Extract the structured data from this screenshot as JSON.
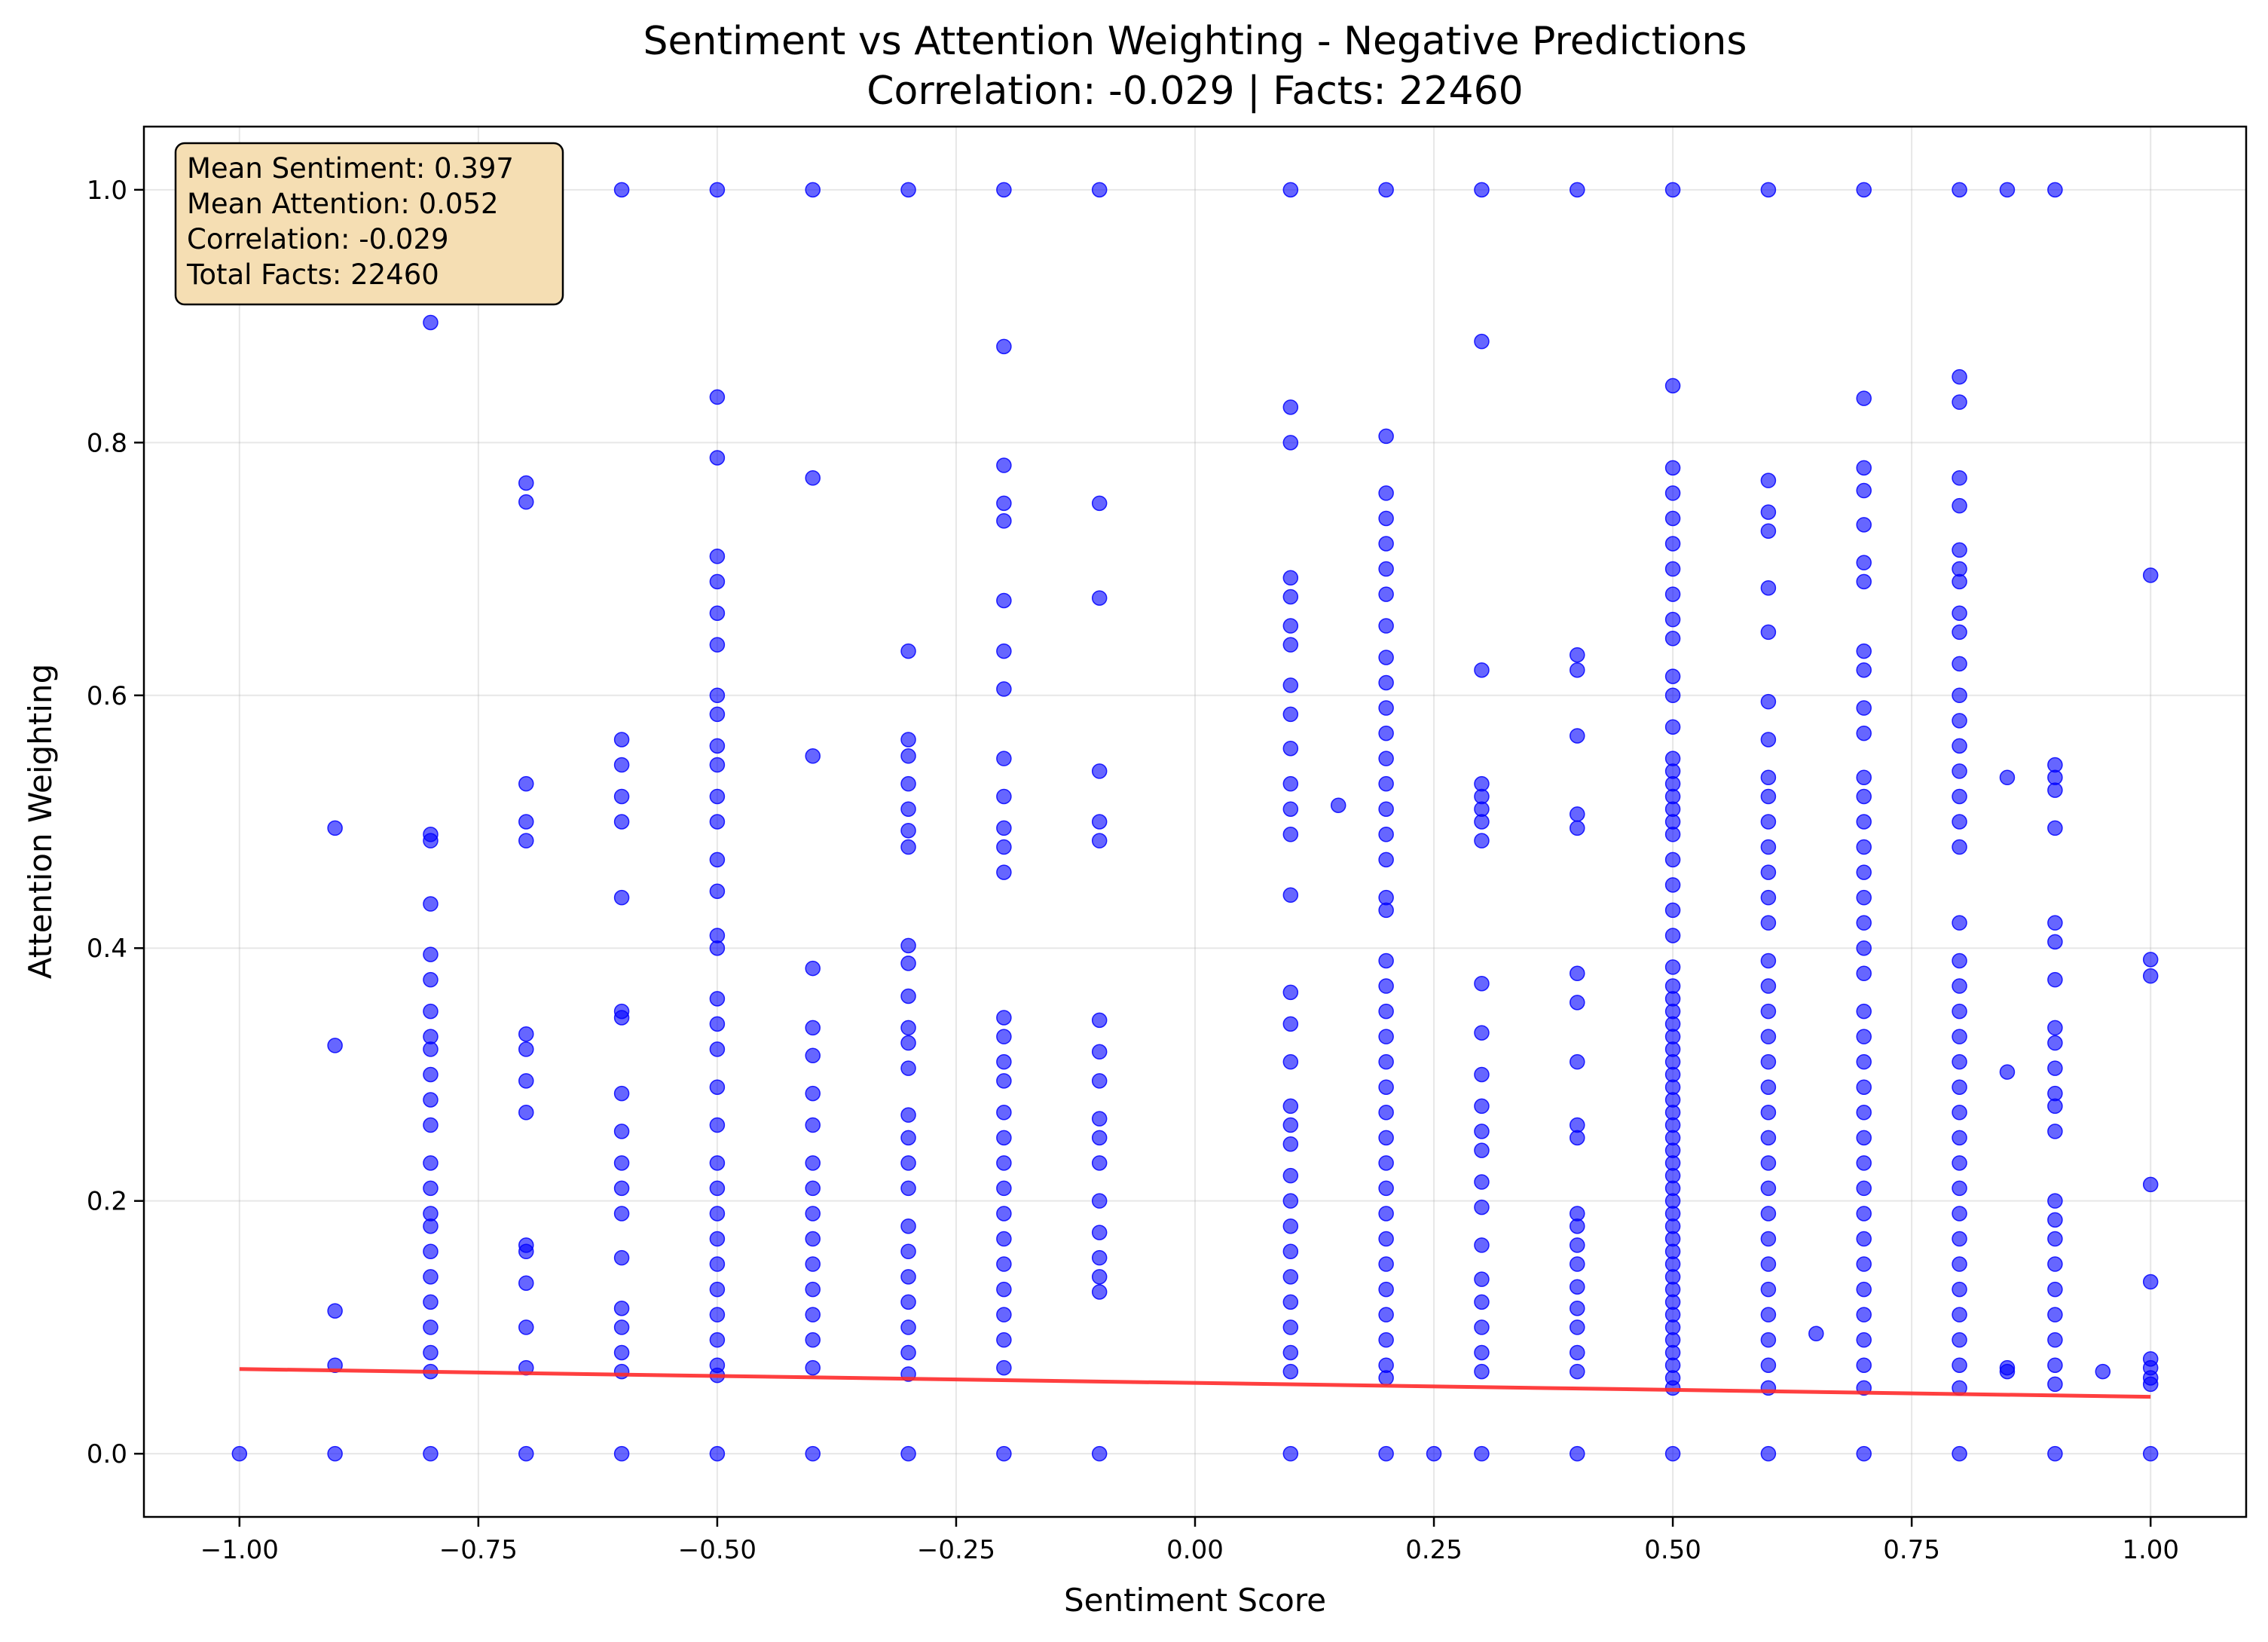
{
  "chart_data": {
    "type": "scatter",
    "title": "Sentiment vs Attention Weighting - Negative Predictions",
    "subtitle": "Correlation: -0.029 | Facts: 22460",
    "xlabel": "Sentiment Score",
    "ylabel": "Attention Weighting",
    "xlim": [
      -1.1,
      1.1
    ],
    "ylim": [
      -0.05,
      1.05
    ],
    "x_ticks": [
      -1.0,
      -0.75,
      -0.5,
      -0.25,
      0.0,
      0.25,
      0.5,
      0.75,
      1.0
    ],
    "x_tick_labels": [
      "−1.00",
      "−0.75",
      "−0.50",
      "−0.25",
      "0.00",
      "0.25",
      "0.50",
      "0.75",
      "1.00"
    ],
    "y_ticks": [
      0.0,
      0.2,
      0.4,
      0.6,
      0.8,
      1.0
    ],
    "y_tick_labels": [
      "0.0",
      "0.2",
      "0.4",
      "0.6",
      "0.8",
      "1.0"
    ],
    "grid": true,
    "point_color": "#0000ff",
    "trend_color": "#ff2a2a",
    "trend_line": {
      "x": [
        -1.0,
        1.0
      ],
      "y": [
        0.067,
        0.045
      ]
    },
    "stats_box": {
      "lines": [
        "Mean Sentiment: 0.397",
        "Mean Attention: 0.052",
        "Correlation: -0.029",
        "Total Facts: 22460"
      ],
      "background": "#f5deb3",
      "placement": "top-left"
    },
    "columns": [
      {
        "x": -1.0,
        "y": [
          0
        ]
      },
      {
        "x": -0.9,
        "y": [
          0,
          0.07,
          0.113,
          0.323,
          0.495
        ]
      },
      {
        "x": -0.8,
        "y": [
          0,
          0.065,
          0.08,
          0.1,
          0.12,
          0.14,
          0.16,
          0.18,
          0.19,
          0.21,
          0.23,
          0.26,
          0.28,
          0.3,
          0.32,
          0.33,
          0.35,
          0.375,
          0.395,
          0.435,
          0.485,
          0.49,
          0.895,
          1.0
        ]
      },
      {
        "x": -0.7,
        "y": [
          0,
          0.068,
          0.1,
          0.135,
          0.16,
          0.165,
          0.27,
          0.295,
          0.32,
          0.332,
          0.485,
          0.5,
          0.53,
          0.753,
          0.768,
          1.0
        ]
      },
      {
        "x": -0.6,
        "y": [
          0,
          0.065,
          0.08,
          0.1,
          0.115,
          0.155,
          0.19,
          0.21,
          0.23,
          0.255,
          0.285,
          0.345,
          0.35,
          0.44,
          0.5,
          0.52,
          0.545,
          0.565,
          1.0
        ]
      },
      {
        "x": -0.5,
        "y": [
          0,
          0.062,
          0.07,
          0.09,
          0.11,
          0.13,
          0.15,
          0.17,
          0.19,
          0.21,
          0.23,
          0.26,
          0.29,
          0.32,
          0.34,
          0.36,
          0.4,
          0.41,
          0.445,
          0.47,
          0.5,
          0.52,
          0.545,
          0.56,
          0.585,
          0.6,
          0.64,
          0.665,
          0.69,
          0.71,
          0.788,
          0.836,
          1.0
        ]
      },
      {
        "x": -0.4,
        "y": [
          0,
          0.068,
          0.09,
          0.11,
          0.13,
          0.15,
          0.17,
          0.19,
          0.21,
          0.23,
          0.26,
          0.285,
          0.315,
          0.337,
          0.384,
          0.552,
          0.772,
          1.0
        ]
      },
      {
        "x": -0.3,
        "y": [
          0,
          0.063,
          0.08,
          0.1,
          0.12,
          0.14,
          0.16,
          0.18,
          0.21,
          0.23,
          0.25,
          0.268,
          0.305,
          0.325,
          0.337,
          0.362,
          0.388,
          0.402,
          0.48,
          0.493,
          0.51,
          0.53,
          0.552,
          0.565,
          0.635,
          1.0
        ]
      },
      {
        "x": -0.2,
        "y": [
          0,
          0.068,
          0.09,
          0.11,
          0.13,
          0.15,
          0.17,
          0.19,
          0.21,
          0.23,
          0.25,
          0.27,
          0.295,
          0.31,
          0.33,
          0.345,
          0.46,
          0.48,
          0.495,
          0.52,
          0.55,
          0.605,
          0.635,
          0.675,
          0.738,
          0.752,
          0.782,
          0.876,
          1.0
        ]
      },
      {
        "x": -0.1,
        "y": [
          0,
          0.128,
          0.14,
          0.155,
          0.175,
          0.2,
          0.23,
          0.25,
          0.265,
          0.295,
          0.318,
          0.343,
          0.485,
          0.5,
          0.54,
          0.677,
          0.752,
          1.0
        ]
      },
      {
        "x": 0.1,
        "y": [
          0,
          0.065,
          0.08,
          0.1,
          0.12,
          0.14,
          0.16,
          0.18,
          0.2,
          0.22,
          0.245,
          0.26,
          0.275,
          0.31,
          0.34,
          0.365,
          0.442,
          0.49,
          0.51,
          0.53,
          0.558,
          0.585,
          0.608,
          0.64,
          0.655,
          0.678,
          0.693,
          0.8,
          0.828,
          1.0
        ]
      },
      {
        "x": 0.15,
        "y": [
          0.513
        ]
      },
      {
        "x": 0.2,
        "y": [
          0,
          0.06,
          0.07,
          0.09,
          0.11,
          0.13,
          0.15,
          0.17,
          0.19,
          0.21,
          0.23,
          0.25,
          0.27,
          0.29,
          0.31,
          0.33,
          0.35,
          0.37,
          0.39,
          0.43,
          0.44,
          0.47,
          0.49,
          0.51,
          0.53,
          0.55,
          0.57,
          0.59,
          0.61,
          0.63,
          0.655,
          0.68,
          0.7,
          0.72,
          0.74,
          0.76,
          0.805,
          1.0
        ]
      },
      {
        "x": 0.25,
        "y": [
          0
        ]
      },
      {
        "x": 0.3,
        "y": [
          0,
          0.065,
          0.08,
          0.1,
          0.12,
          0.138,
          0.165,
          0.195,
          0.215,
          0.24,
          0.255,
          0.275,
          0.3,
          0.333,
          0.372,
          0.485,
          0.5,
          0.51,
          0.52,
          0.53,
          0.62,
          0.88,
          1.0
        ]
      },
      {
        "x": 0.4,
        "y": [
          0,
          0.065,
          0.08,
          0.1,
          0.115,
          0.132,
          0.15,
          0.165,
          0.18,
          0.19,
          0.25,
          0.26,
          0.31,
          0.357,
          0.38,
          0.495,
          0.506,
          0.568,
          0.62,
          0.632,
          1.0
        ]
      },
      {
        "x": 0.5,
        "y": [
          0,
          0.052,
          0.06,
          0.07,
          0.08,
          0.09,
          0.1,
          0.11,
          0.12,
          0.13,
          0.14,
          0.15,
          0.16,
          0.17,
          0.18,
          0.19,
          0.2,
          0.21,
          0.22,
          0.23,
          0.24,
          0.25,
          0.26,
          0.27,
          0.28,
          0.29,
          0.3,
          0.31,
          0.32,
          0.33,
          0.34,
          0.35,
          0.36,
          0.37,
          0.385,
          0.41,
          0.43,
          0.45,
          0.47,
          0.49,
          0.5,
          0.51,
          0.52,
          0.53,
          0.54,
          0.55,
          0.575,
          0.6,
          0.615,
          0.645,
          0.66,
          0.68,
          0.7,
          0.72,
          0.74,
          0.76,
          0.78,
          0.845,
          1.0
        ]
      },
      {
        "x": 0.6,
        "y": [
          0,
          0.052,
          0.07,
          0.09,
          0.11,
          0.13,
          0.15,
          0.17,
          0.19,
          0.21,
          0.23,
          0.25,
          0.27,
          0.29,
          0.31,
          0.33,
          0.35,
          0.37,
          0.39,
          0.42,
          0.44,
          0.46,
          0.48,
          0.5,
          0.52,
          0.535,
          0.565,
          0.595,
          0.65,
          0.685,
          0.73,
          0.745,
          0.77,
          1.0
        ]
      },
      {
        "x": 0.65,
        "y": [
          0.095
        ]
      },
      {
        "x": 0.7,
        "y": [
          0,
          0.052,
          0.07,
          0.09,
          0.11,
          0.13,
          0.15,
          0.17,
          0.19,
          0.21,
          0.23,
          0.25,
          0.27,
          0.29,
          0.31,
          0.33,
          0.35,
          0.38,
          0.4,
          0.42,
          0.44,
          0.46,
          0.48,
          0.5,
          0.52,
          0.535,
          0.57,
          0.59,
          0.62,
          0.635,
          0.69,
          0.705,
          0.735,
          0.762,
          0.78,
          0.835,
          1.0
        ]
      },
      {
        "x": 0.8,
        "y": [
          0,
          0.052,
          0.07,
          0.09,
          0.11,
          0.13,
          0.15,
          0.17,
          0.19,
          0.21,
          0.23,
          0.25,
          0.27,
          0.29,
          0.31,
          0.33,
          0.35,
          0.37,
          0.39,
          0.42,
          0.48,
          0.5,
          0.52,
          0.54,
          0.56,
          0.58,
          0.6,
          0.625,
          0.65,
          0.665,
          0.69,
          0.7,
          0.715,
          0.75,
          0.772,
          0.832,
          0.852,
          1.0
        ]
      },
      {
        "x": 0.85,
        "y": [
          0.065,
          0.068,
          0.302,
          0.535,
          1.0
        ]
      },
      {
        "x": 0.9,
        "y": [
          0,
          0.055,
          0.07,
          0.09,
          0.11,
          0.13,
          0.15,
          0.17,
          0.185,
          0.2,
          0.255,
          0.275,
          0.285,
          0.305,
          0.325,
          0.337,
          0.375,
          0.405,
          0.42,
          0.495,
          0.525,
          0.535,
          0.545,
          1.0
        ]
      },
      {
        "x": 0.95,
        "y": [
          0.065
        ]
      },
      {
        "x": 1.0,
        "y": [
          0,
          0.055,
          0.06,
          0.068,
          0.075,
          0.136,
          0.213,
          0.378,
          0.391,
          0.695
        ]
      }
    ]
  }
}
